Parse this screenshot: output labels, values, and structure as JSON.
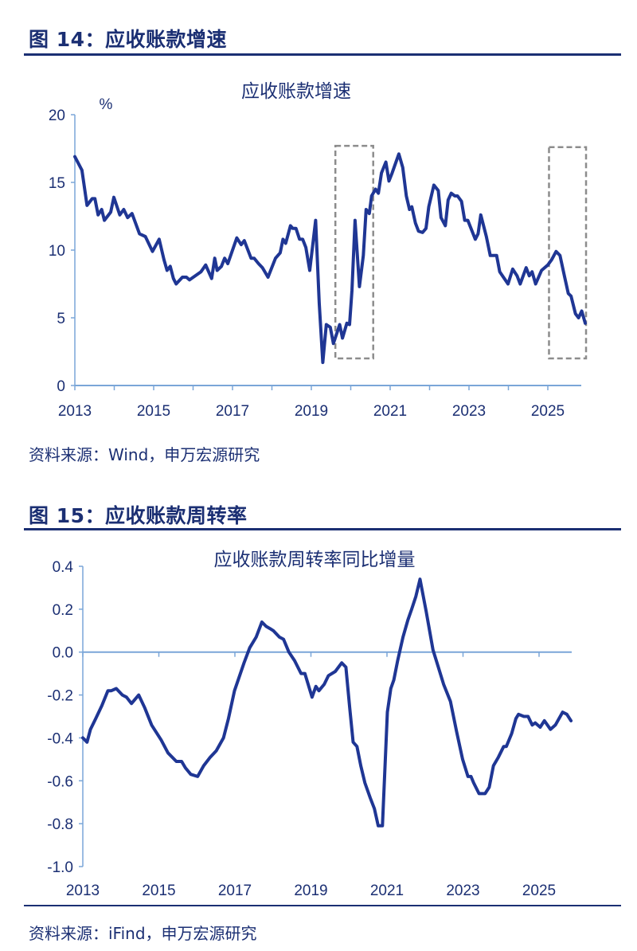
{
  "figures": [
    {
      "label": "图 14：应收账款增速",
      "source": "资料来源：Wind，申万宏源研究"
    },
    {
      "label": "图 15：应收账款周转率",
      "source": "资料来源：iFind，申万宏源研究"
    }
  ],
  "colors": {
    "line": "#1f3694",
    "axis": "#7aa6d8",
    "heading": "#1b2f73",
    "annotation_box": "#8c8c8c"
  },
  "chart_data": [
    {
      "type": "line",
      "title": "应收账款增速",
      "unit_label": "%",
      "xlim": [
        2013,
        2026
      ],
      "ylim": [
        0,
        20
      ],
      "yticks": [
        0,
        5,
        10,
        15,
        20
      ],
      "xtick_labels": [
        "2013",
        "2015",
        "2017",
        "2019",
        "2021",
        "2023",
        "2025"
      ],
      "grid": false,
      "annotations": [
        {
          "type": "dashed-box",
          "x": [
            2019.61,
            2020.57
          ],
          "y": [
            2.0,
            17.7
          ]
        },
        {
          "type": "dashed-box",
          "x": [
            2025.03,
            2025.97
          ],
          "y": [
            2.0,
            17.6
          ]
        }
      ],
      "series": [
        {
          "values": [
            [
              2013.0,
              16.9
            ],
            [
              2013.18,
              15.9
            ],
            [
              2013.31,
              13.3
            ],
            [
              2013.44,
              13.8
            ],
            [
              2013.51,
              13.8
            ],
            [
              2013.59,
              12.6
            ],
            [
              2013.68,
              13.0
            ],
            [
              2013.75,
              12.2
            ],
            [
              2013.91,
              12.8
            ],
            [
              2013.99,
              13.9
            ],
            [
              2014.14,
              12.6
            ],
            [
              2014.24,
              13.0
            ],
            [
              2014.34,
              12.4
            ],
            [
              2014.45,
              12.7
            ],
            [
              2014.64,
              11.2
            ],
            [
              2014.79,
              11.0
            ],
            [
              2014.97,
              9.9
            ],
            [
              2015.14,
              10.8
            ],
            [
              2015.26,
              9.3
            ],
            [
              2015.34,
              8.5
            ],
            [
              2015.42,
              8.8
            ],
            [
              2015.5,
              7.9
            ],
            [
              2015.57,
              7.5
            ],
            [
              2015.73,
              8.0
            ],
            [
              2015.83,
              8.0
            ],
            [
              2015.91,
              7.8
            ],
            [
              2016.2,
              8.4
            ],
            [
              2016.32,
              8.9
            ],
            [
              2016.47,
              7.9
            ],
            [
              2016.55,
              9.4
            ],
            [
              2016.61,
              8.5
            ],
            [
              2016.72,
              8.8
            ],
            [
              2016.8,
              9.4
            ],
            [
              2016.88,
              9.0
            ],
            [
              2017.11,
              10.9
            ],
            [
              2017.22,
              10.4
            ],
            [
              2017.3,
              10.7
            ],
            [
              2017.47,
              9.4
            ],
            [
              2017.55,
              9.4
            ],
            [
              2017.66,
              9.0
            ],
            [
              2017.76,
              8.7
            ],
            [
              2017.9,
              8.0
            ],
            [
              2018.09,
              9.4
            ],
            [
              2018.21,
              9.8
            ],
            [
              2018.28,
              10.8
            ],
            [
              2018.35,
              10.5
            ],
            [
              2018.47,
              11.8
            ],
            [
              2018.53,
              11.6
            ],
            [
              2018.61,
              11.6
            ],
            [
              2018.7,
              10.8
            ],
            [
              2018.78,
              10.8
            ],
            [
              2018.86,
              10.2
            ],
            [
              2018.96,
              8.5
            ],
            [
              2019.11,
              12.2
            ],
            [
              2019.2,
              6.1
            ],
            [
              2019.29,
              1.7
            ],
            [
              2019.38,
              4.5
            ],
            [
              2019.48,
              4.3
            ],
            [
              2019.56,
              3.1
            ],
            [
              2019.64,
              3.8
            ],
            [
              2019.72,
              4.5
            ],
            [
              2019.79,
              3.5
            ],
            [
              2019.9,
              4.6
            ],
            [
              2019.97,
              4.5
            ],
            [
              2020.03,
              7.0
            ],
            [
              2020.11,
              12.2
            ],
            [
              2020.22,
              7.3
            ],
            [
              2020.32,
              9.6
            ],
            [
              2020.39,
              13.0
            ],
            [
              2020.47,
              12.7
            ],
            [
              2020.53,
              14.0
            ],
            [
              2020.63,
              14.5
            ],
            [
              2020.7,
              14.2
            ],
            [
              2020.78,
              15.7
            ],
            [
              2020.89,
              16.5
            ],
            [
              2020.97,
              15.1
            ],
            [
              2021.05,
              15.7
            ],
            [
              2021.22,
              17.1
            ],
            [
              2021.32,
              16.1
            ],
            [
              2021.41,
              14.0
            ],
            [
              2021.49,
              13.0
            ],
            [
              2021.55,
              13.2
            ],
            [
              2021.64,
              12.0
            ],
            [
              2021.72,
              11.4
            ],
            [
              2021.82,
              11.3
            ],
            [
              2021.91,
              11.6
            ],
            [
              2021.98,
              13.2
            ],
            [
              2022.11,
              14.8
            ],
            [
              2022.22,
              14.4
            ],
            [
              2022.29,
              12.4
            ],
            [
              2022.4,
              11.8
            ],
            [
              2022.47,
              13.7
            ],
            [
              2022.55,
              14.2
            ],
            [
              2022.64,
              14.0
            ],
            [
              2022.71,
              14.0
            ],
            [
              2022.81,
              13.6
            ],
            [
              2022.89,
              12.2
            ],
            [
              2022.97,
              12.2
            ],
            [
              2023.16,
              10.8
            ],
            [
              2023.23,
              11.2
            ],
            [
              2023.3,
              12.6
            ],
            [
              2023.44,
              11.0
            ],
            [
              2023.54,
              9.6
            ],
            [
              2023.7,
              9.6
            ],
            [
              2023.78,
              8.4
            ],
            [
              2023.99,
              7.5
            ],
            [
              2024.11,
              8.6
            ],
            [
              2024.22,
              8.1
            ],
            [
              2024.3,
              7.5
            ],
            [
              2024.45,
              8.7
            ],
            [
              2024.53,
              8.1
            ],
            [
              2024.6,
              8.4
            ],
            [
              2024.69,
              7.5
            ],
            [
              2024.84,
              8.5
            ],
            [
              2025.0,
              8.9
            ],
            [
              2025.1,
              9.3
            ],
            [
              2025.21,
              9.9
            ],
            [
              2025.31,
              9.6
            ],
            [
              2025.42,
              8.1
            ],
            [
              2025.52,
              6.8
            ],
            [
              2025.59,
              6.6
            ],
            [
              2025.7,
              5.3
            ],
            [
              2025.78,
              5.0
            ],
            [
              2025.86,
              5.5
            ],
            [
              2025.95,
              4.6
            ]
          ]
        }
      ]
    },
    {
      "type": "line",
      "title": "应收账款周转率同比增量",
      "xlim": [
        2013,
        2025.95
      ],
      "ylim": [
        -1.0,
        0.4
      ],
      "yticks": [
        0.4,
        0.2,
        0.0,
        -0.2,
        -0.4,
        -0.6,
        -0.8,
        -1.0
      ],
      "ytick_labels": [
        "0.4",
        "0.2",
        "0.0",
        "-0.2",
        "-0.4",
        "-0.6",
        "-0.8",
        "-1.0"
      ],
      "xtick_labels": [
        "2013",
        "2015",
        "2017",
        "2019",
        "2021",
        "2023",
        "2025"
      ],
      "grid": false,
      "series": [
        {
          "values": [
            [
              2013.0,
              -0.4
            ],
            [
              2013.11,
              -0.42
            ],
            [
              2013.2,
              -0.36
            ],
            [
              2013.34,
              -0.31
            ],
            [
              2013.5,
              -0.25
            ],
            [
              2013.66,
              -0.18
            ],
            [
              2013.75,
              -0.18
            ],
            [
              2013.88,
              -0.17
            ],
            [
              2014.04,
              -0.2
            ],
            [
              2014.15,
              -0.21
            ],
            [
              2014.28,
              -0.24
            ],
            [
              2014.47,
              -0.2
            ],
            [
              2014.63,
              -0.26
            ],
            [
              2014.81,
              -0.34
            ],
            [
              2015.06,
              -0.41
            ],
            [
              2015.24,
              -0.47
            ],
            [
              2015.46,
              -0.51
            ],
            [
              2015.6,
              -0.51
            ],
            [
              2015.7,
              -0.54
            ],
            [
              2015.84,
              -0.57
            ],
            [
              2016.02,
              -0.58
            ],
            [
              2016.18,
              -0.53
            ],
            [
              2016.35,
              -0.49
            ],
            [
              2016.51,
              -0.46
            ],
            [
              2016.7,
              -0.4
            ],
            [
              2016.83,
              -0.31
            ],
            [
              2016.99,
              -0.18
            ],
            [
              2017.24,
              -0.05
            ],
            [
              2017.39,
              0.02
            ],
            [
              2017.56,
              0.07
            ],
            [
              2017.71,
              0.14
            ],
            [
              2017.82,
              0.12
            ],
            [
              2017.92,
              0.11
            ],
            [
              2018.01,
              0.1
            ],
            [
              2018.17,
              0.07
            ],
            [
              2018.28,
              0.06
            ],
            [
              2018.42,
              0.0
            ],
            [
              2018.57,
              -0.04
            ],
            [
              2018.74,
              -0.1
            ],
            [
              2018.84,
              -0.1
            ],
            [
              2019.03,
              -0.21
            ],
            [
              2019.13,
              -0.16
            ],
            [
              2019.21,
              -0.18
            ],
            [
              2019.35,
              -0.15
            ],
            [
              2019.46,
              -0.11
            ],
            [
              2019.64,
              -0.09
            ],
            [
              2019.81,
              -0.05
            ],
            [
              2019.92,
              -0.07
            ],
            [
              2020.02,
              -0.26
            ],
            [
              2020.11,
              -0.42
            ],
            [
              2020.21,
              -0.44
            ],
            [
              2020.31,
              -0.53
            ],
            [
              2020.42,
              -0.61
            ],
            [
              2020.56,
              -0.68
            ],
            [
              2020.67,
              -0.73
            ],
            [
              2020.77,
              -0.81
            ],
            [
              2020.88,
              -0.81
            ],
            [
              2021.01,
              -0.28
            ],
            [
              2021.1,
              -0.17
            ],
            [
              2021.18,
              -0.13
            ],
            [
              2021.28,
              -0.04
            ],
            [
              2021.42,
              0.07
            ],
            [
              2021.55,
              0.15
            ],
            [
              2021.65,
              0.2
            ],
            [
              2021.76,
              0.26
            ],
            [
              2021.87,
              0.34
            ],
            [
              2022.03,
              0.19
            ],
            [
              2022.21,
              0.01
            ],
            [
              2022.35,
              -0.07
            ],
            [
              2022.49,
              -0.15
            ],
            [
              2022.67,
              -0.23
            ],
            [
              2022.83,
              -0.37
            ],
            [
              2022.99,
              -0.5
            ],
            [
              2023.13,
              -0.58
            ],
            [
              2023.21,
              -0.58
            ],
            [
              2023.28,
              -0.61
            ],
            [
              2023.42,
              -0.66
            ],
            [
              2023.58,
              -0.66
            ],
            [
              2023.69,
              -0.63
            ],
            [
              2023.8,
              -0.53
            ],
            [
              2023.93,
              -0.49
            ],
            [
              2024.07,
              -0.44
            ],
            [
              2024.14,
              -0.44
            ],
            [
              2024.28,
              -0.38
            ],
            [
              2024.39,
              -0.31
            ],
            [
              2024.46,
              -0.29
            ],
            [
              2024.6,
              -0.3
            ],
            [
              2024.71,
              -0.3
            ],
            [
              2024.82,
              -0.34
            ],
            [
              2024.9,
              -0.33
            ],
            [
              2025.03,
              -0.35
            ],
            [
              2025.14,
              -0.32
            ],
            [
              2025.3,
              -0.36
            ],
            [
              2025.43,
              -0.34
            ],
            [
              2025.62,
              -0.28
            ],
            [
              2025.73,
              -0.29
            ],
            [
              2025.84,
              -0.32
            ]
          ]
        }
      ]
    }
  ]
}
